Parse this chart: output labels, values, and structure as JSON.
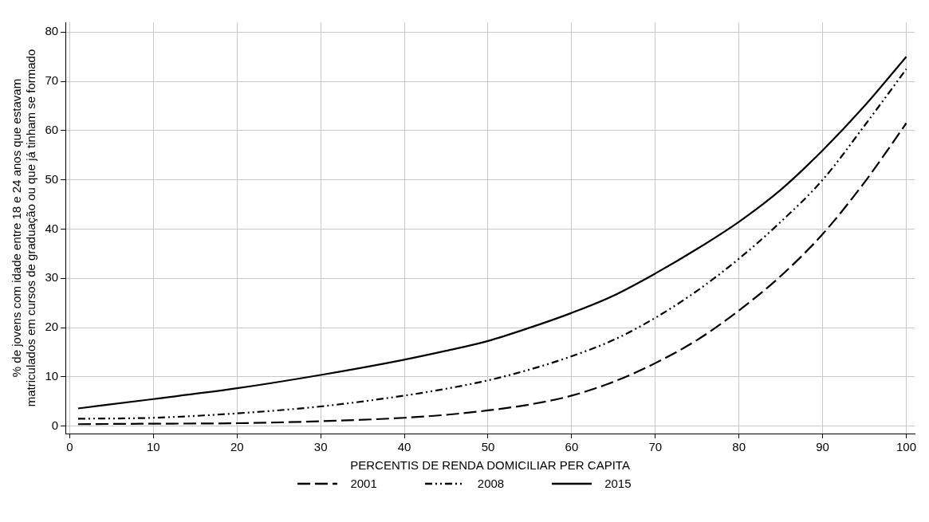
{
  "chart_data": {
    "type": "line",
    "xlabel": "PERCENTIS DE RENDA DOMICILIAR PER CAPITA",
    "ylabel": "% de jovens com idade entre 18 e 24 anos que estavam matriculados em cursos de graduação ou que já tinham se formado",
    "x": [
      1,
      10,
      20,
      30,
      40,
      45,
      50,
      55,
      60,
      65,
      70,
      75,
      80,
      85,
      90,
      95,
      100
    ],
    "series": [
      {
        "name": "2001",
        "color": "#000000",
        "line_style": "dashed",
        "values": [
          0.4,
          0.5,
          0.6,
          1,
          1.7,
          2.3,
          3.2,
          4.4,
          6.2,
          9,
          12.8,
          17.5,
          23.5,
          30.5,
          39,
          49.5,
          61.5
        ]
      },
      {
        "name": "2008",
        "color": "#000000",
        "line_style": "dotted",
        "values": [
          1.5,
          1.7,
          2.6,
          4,
          6.2,
          7.6,
          9.3,
          11.5,
          14.2,
          17.5,
          22,
          27.5,
          34,
          41.5,
          50,
          61,
          72.5
        ]
      },
      {
        "name": "2015",
        "color": "#000000",
        "line_style": "solid",
        "values": [
          3.6,
          5.5,
          7.7,
          10.4,
          13.5,
          15.3,
          17.3,
          20,
          23,
          26.5,
          31,
          36,
          41.5,
          48,
          56,
          65,
          75
        ]
      }
    ],
    "xlim": [
      -0.5,
      101
    ],
    "xticks": [
      0,
      10,
      20,
      30,
      40,
      50,
      60,
      70,
      80,
      90,
      100
    ],
    "ylim": [
      -1.5,
      82
    ],
    "yticks": [
      0,
      10,
      20,
      30,
      40,
      50,
      60,
      70,
      80
    ],
    "grid": true,
    "legend": "bottom",
    "marker": "none"
  }
}
